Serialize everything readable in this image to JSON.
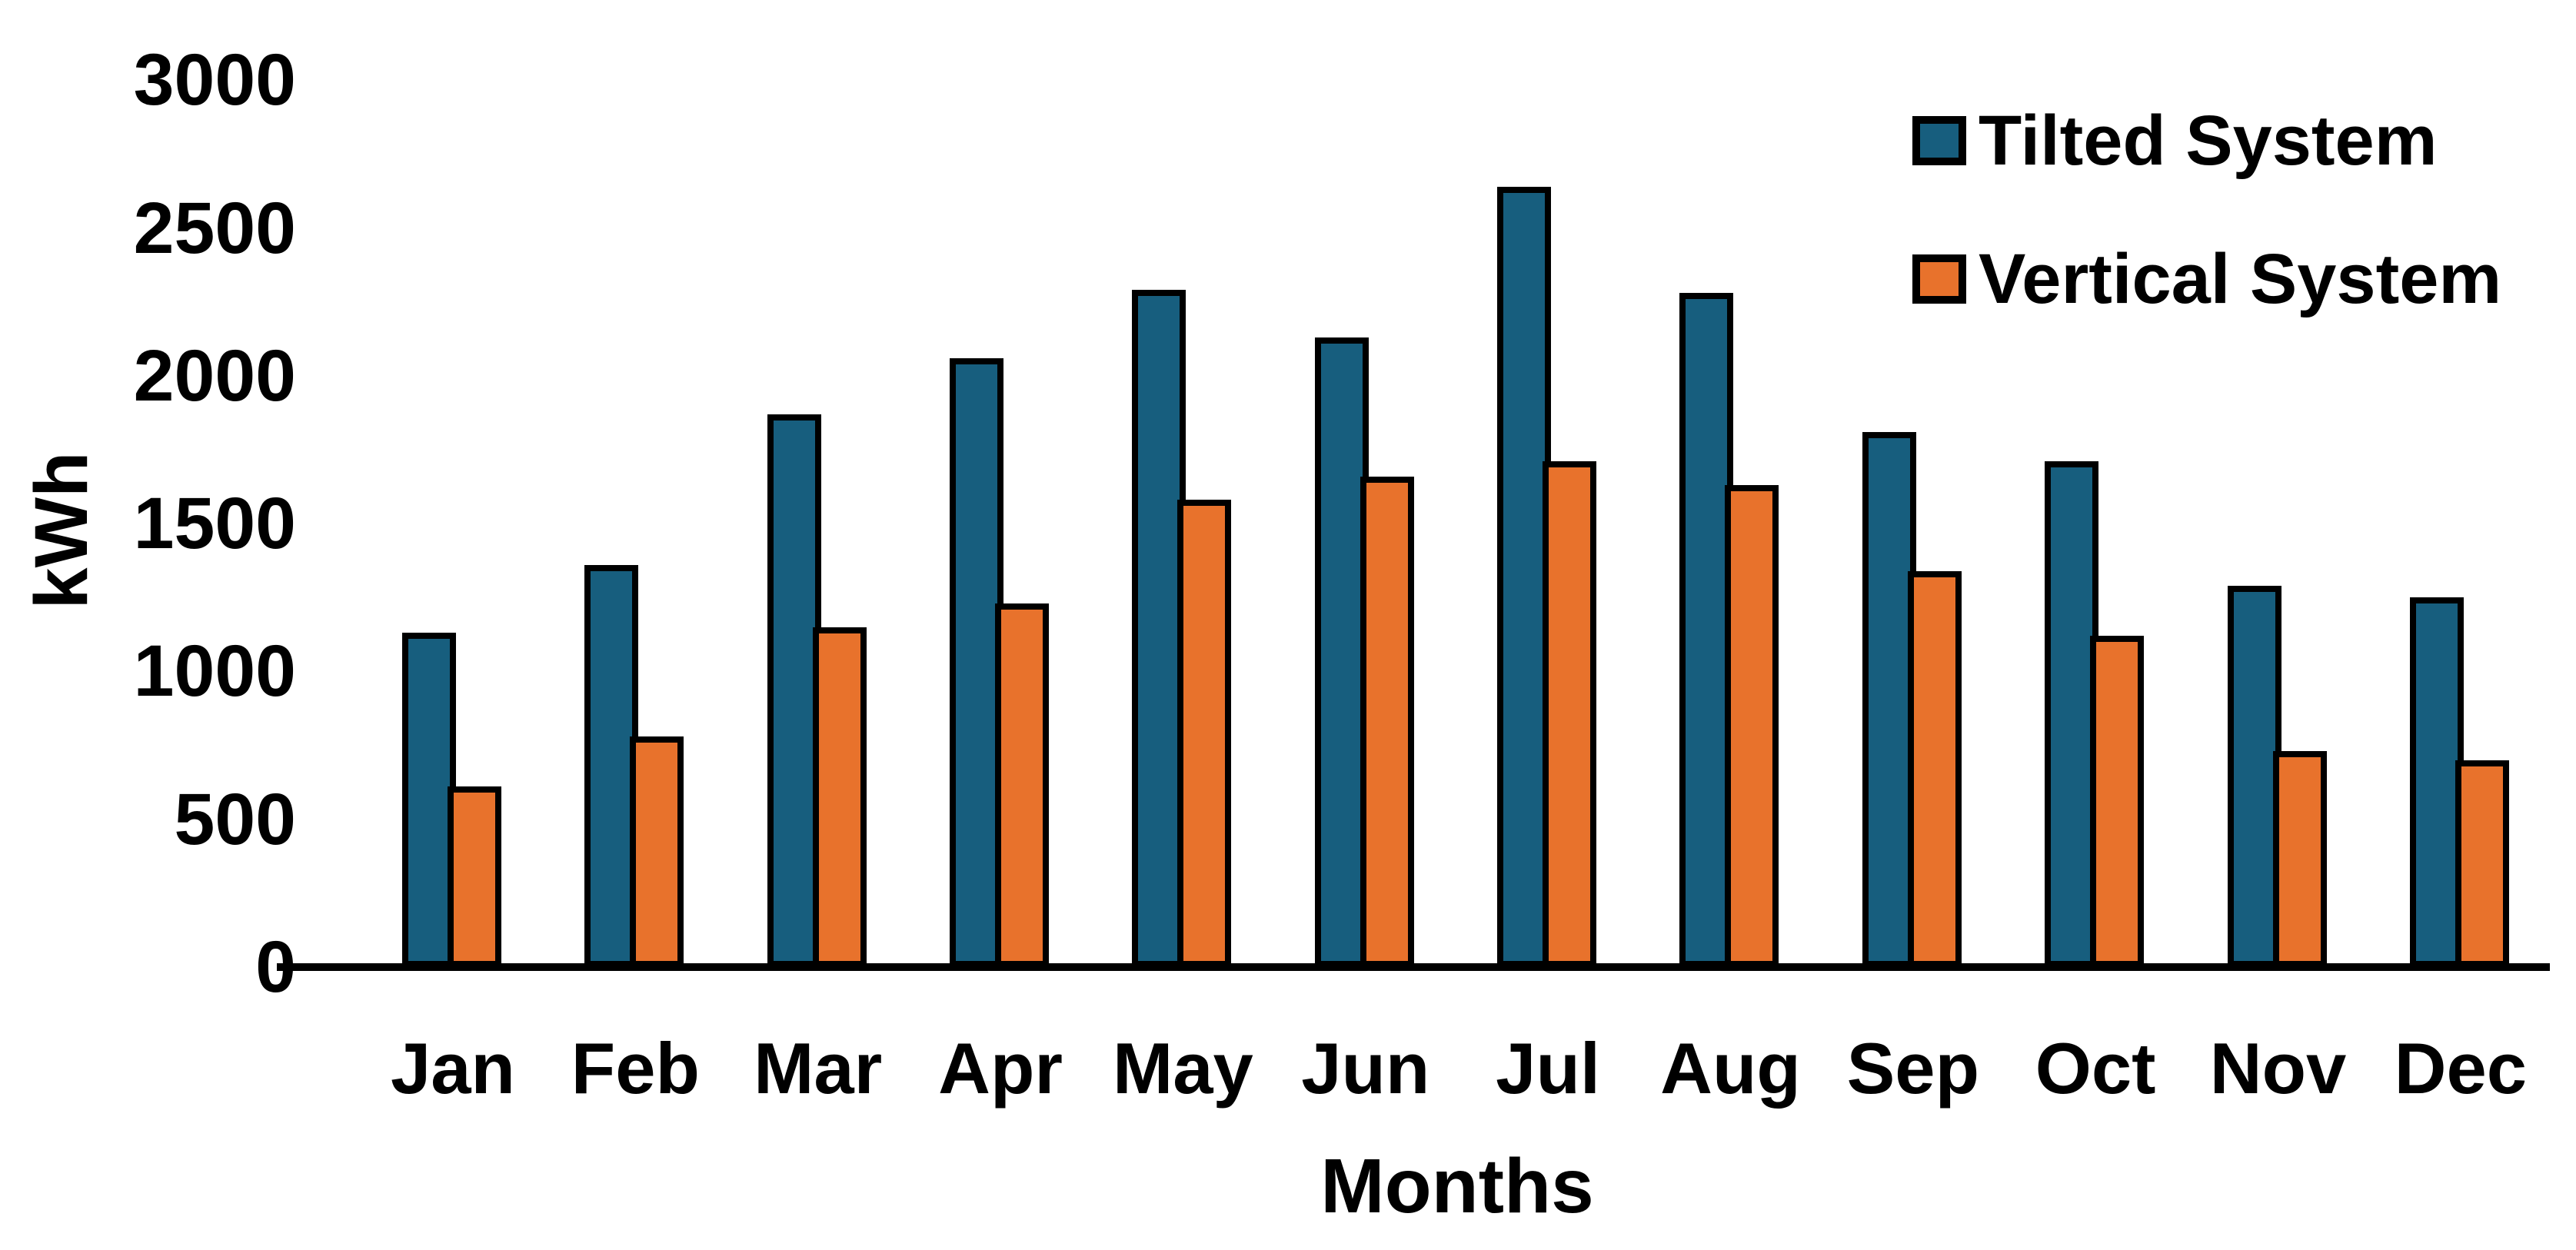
{
  "chart_data": {
    "type": "bar",
    "title": "",
    "categories": [
      "Jan",
      "Feb",
      "Mar",
      "Apr",
      "May",
      "Jun",
      "Jul",
      "Aug",
      "Sep",
      "Oct",
      "Nov",
      "Dec"
    ],
    "series": [
      {
        "name": "Tilted System",
        "color": "#175E7E",
        "values": [
          1130,
          1360,
          1870,
          2060,
          2290,
          2130,
          2640,
          2280,
          1810,
          1710,
          1290,
          1250
        ]
      },
      {
        "name": "Vertical System",
        "color": "#E8722C",
        "values": [
          610,
          780,
          1150,
          1230,
          1580,
          1660,
          1710,
          1630,
          1340,
          1120,
          730,
          700
        ]
      }
    ],
    "xlabel": "Months",
    "ylabel": "kWh",
    "ylim": [
      0,
      3000
    ],
    "y_ticks": [
      0,
      500,
      1000,
      1500,
      2000,
      2500,
      3000
    ],
    "grid": false,
    "legend_position": "top-right",
    "bar_border_color": "#000000",
    "background_color": "#FFFFFF",
    "text_color": "#000000"
  }
}
